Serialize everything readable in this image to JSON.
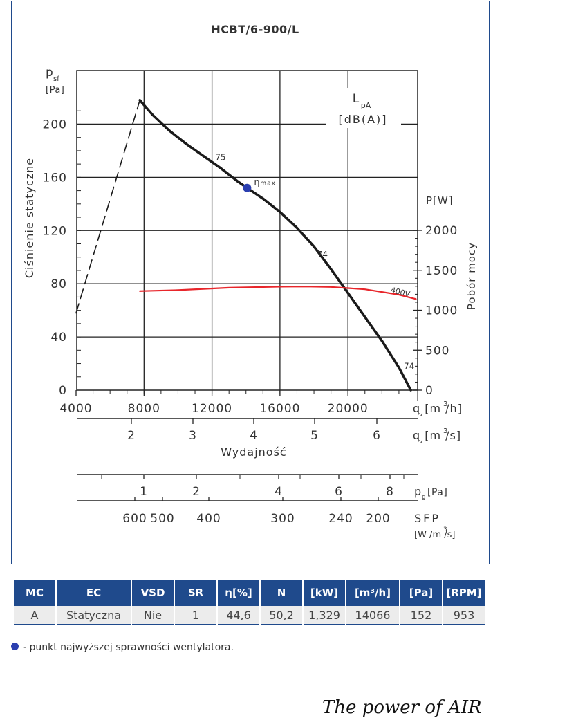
{
  "chart_data": {
    "type": "line",
    "title": "HCBT/6-900/L",
    "ylabel": "Ciśnienie statyczne",
    "y_axis_symbol": "p",
    "y_axis_subscript": "sf",
    "y_axis_unit": "[Pa]",
    "ylim": [
      0,
      220
    ],
    "y_ticks": [
      0,
      40,
      80,
      120,
      160,
      200
    ],
    "y2_label": "Pobór mocy",
    "y2_axis_unit": "P[W]",
    "y2lim": [
      0,
      2000
    ],
    "y2_ticks": [
      0,
      500,
      1000,
      1500,
      2000
    ],
    "xlabel": "Wydajność",
    "xlim_m3h": [
      4000,
      24000
    ],
    "x_ticks_m3h": [
      4000,
      8000,
      12000,
      16000,
      20000
    ],
    "x_unit_m3h": "q  [m /h]",
    "x_ticks_m3s": [
      2,
      3,
      4,
      5,
      6
    ],
    "x_unit_m3s": "q  [m /s]",
    "noise_label": "L",
    "noise_label_sub": "pA",
    "noise_unit": "[dB(A)]",
    "grid": true,
    "series": [
      {
        "name": "pressure",
        "color": "#1a1a1a",
        "x": [
          7750,
          8500,
          9500,
          10500,
          11500,
          12500,
          13500,
          14066,
          15000,
          16000,
          17000,
          18000,
          19000,
          20000,
          21000,
          22000,
          23000,
          23700
        ],
        "y": [
          218,
          207,
          195,
          185,
          176,
          167,
          157,
          152,
          144,
          134,
          122,
          108,
          91,
          73,
          55,
          37,
          17,
          0
        ]
      },
      {
        "name": "stall",
        "color": "#1a1a1a",
        "dashed": true,
        "x": [
          4000,
          7750
        ],
        "y": [
          58,
          218
        ]
      },
      {
        "name": "400V",
        "color": "#e8262b",
        "axis": "right",
        "x": [
          7750,
          10000,
          13000,
          16000,
          17500,
          19000,
          21000,
          23000,
          24000
        ],
        "y": [
          1240,
          1252,
          1282,
          1295,
          1298,
          1292,
          1262,
          1195,
          1140
        ]
      }
    ],
    "noise_values": [
      {
        "x": 12500,
        "y": 175,
        "label": "75"
      },
      {
        "x": 18500,
        "y": 102,
        "label": "74"
      },
      {
        "x": 23600,
        "y": 18,
        "label": "74"
      }
    ],
    "eta_point": {
      "x": 14066,
      "y": 152,
      "label": "η",
      "sub": "max",
      "color": "#2b3fb0"
    },
    "series_400v_label": "400V",
    "pg_scale": {
      "ticks": [
        "1",
        "2",
        "4",
        "6",
        "8"
      ],
      "unit": "p",
      "unit_sub": "g",
      "unit_tail": "[Pa]"
    },
    "sfp_scale": {
      "ticks": [
        "600",
        "500",
        "400",
        "300",
        "240",
        "200"
      ],
      "label": "SFP",
      "unit": "[W /m /s]"
    }
  },
  "table": {
    "headers": [
      "MC",
      "EC",
      "VSD",
      "SR",
      "η[%]",
      "N",
      "[kW]",
      "[m³/h]",
      "[Pa]",
      "[RPM]"
    ],
    "row": [
      "A",
      "Statyczna",
      "Nie",
      "1",
      "44,6",
      "50,2",
      "1,329",
      "14066",
      "152",
      "953"
    ]
  },
  "legend_note": "- punkt najwyższej sprawności wentylatora.",
  "footer": {
    "slogan": "The power of AIR"
  }
}
